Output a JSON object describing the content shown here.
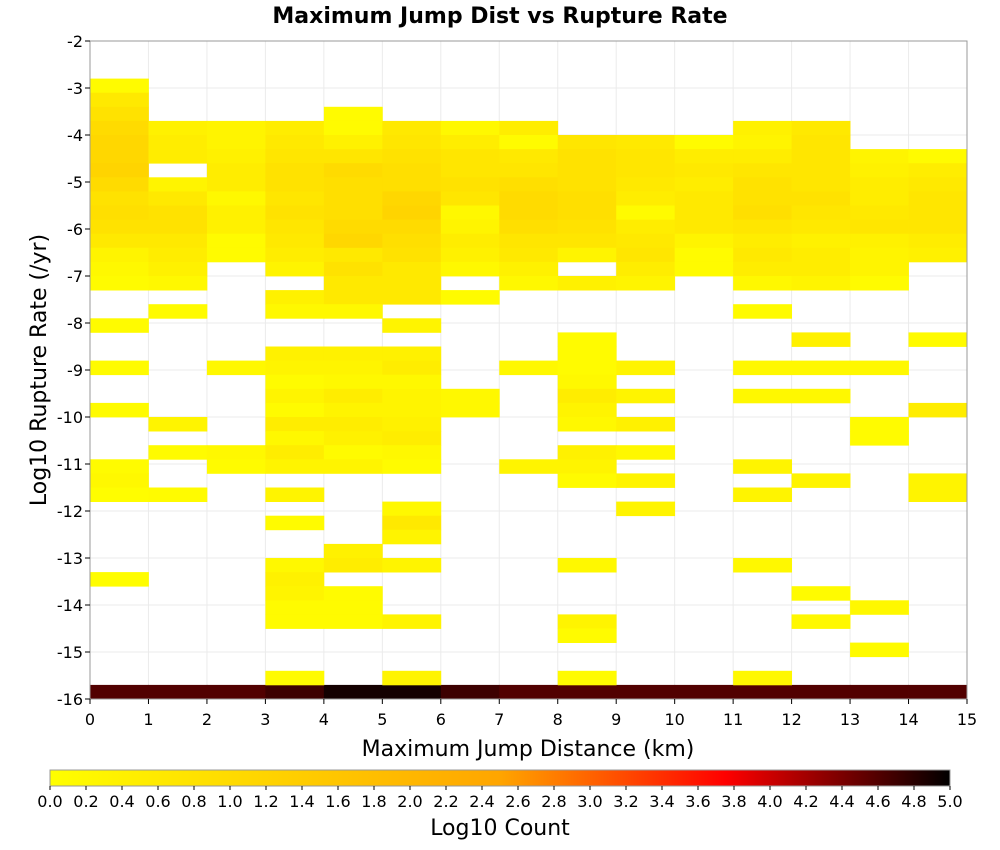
{
  "chart_data": {
    "type": "heatmap",
    "title": "Maximum Jump Dist vs Rupture Rate",
    "xlabel": "Maximum Jump Distance (km)",
    "ylabel": "Log10 Rupture Rate (/yr)",
    "xlim": [
      0,
      15
    ],
    "ylim": [
      -16,
      -2
    ],
    "x_ticks": [
      "0",
      "1",
      "2",
      "3",
      "4",
      "5",
      "6",
      "7",
      "8",
      "9",
      "10",
      "11",
      "12",
      "13",
      "14",
      "15"
    ],
    "y_ticks": [
      "-2",
      "-3",
      "-4",
      "-5",
      "-6",
      "-7",
      "-8",
      "-9",
      "-10",
      "-11",
      "-12",
      "-13",
      "-14",
      "-15",
      "-16"
    ],
    "bin_width_x": 1,
    "bin_height_y": 0.3,
    "grid": true,
    "colorbar": {
      "label": "Log10 Count",
      "range": [
        0,
        5
      ],
      "ticks": [
        "0.0",
        "0.2",
        "0.4",
        "0.6",
        "0.8",
        "1.0",
        "1.2",
        "1.4",
        "1.6",
        "1.8",
        "2.0",
        "2.2",
        "2.4",
        "2.6",
        "2.8",
        "3.0",
        "3.2",
        "3.4",
        "3.6",
        "3.8",
        "4.0",
        "4.2",
        "4.4",
        "4.6",
        "4.8",
        "5.0"
      ],
      "colors": [
        "#ffff00",
        "#ffa500",
        "#ff0000",
        "#000000"
      ]
    },
    "cells": [
      [
        0,
        -16.0,
        4.6
      ],
      [
        1,
        -16.0,
        4.6
      ],
      [
        2,
        -16.0,
        4.6
      ],
      [
        3,
        -16.0,
        4.7
      ],
      [
        4,
        -16.0,
        4.9
      ],
      [
        5,
        -16.0,
        4.9
      ],
      [
        6,
        -16.0,
        4.7
      ],
      [
        7,
        -16.0,
        4.6
      ],
      [
        8,
        -16.0,
        4.6
      ],
      [
        9,
        -16.0,
        4.6
      ],
      [
        10,
        -16.0,
        4.6
      ],
      [
        11,
        -16.0,
        4.6
      ],
      [
        12,
        -16.0,
        4.6
      ],
      [
        13,
        -16.0,
        4.6
      ],
      [
        14,
        -16.0,
        4.6
      ],
      [
        0,
        -3.1,
        0.1
      ],
      [
        0,
        -3.4,
        0.6
      ],
      [
        0,
        -3.7,
        0.8
      ],
      [
        0,
        -4.0,
        1.0
      ],
      [
        0,
        -4.3,
        1.1
      ],
      [
        0,
        -4.6,
        1.1
      ],
      [
        0,
        -4.9,
        1.2
      ],
      [
        0,
        -5.2,
        1.0
      ],
      [
        0,
        -5.5,
        0.8
      ],
      [
        0,
        -5.8,
        0.9
      ],
      [
        0,
        -6.1,
        0.8
      ],
      [
        0,
        -6.4,
        0.6
      ],
      [
        0,
        -6.7,
        0.3
      ],
      [
        0,
        -7.0,
        0.2
      ],
      [
        0,
        -7.3,
        0.1
      ],
      [
        0,
        -8.2,
        0.1
      ],
      [
        0,
        -9.1,
        0.1
      ],
      [
        0,
        -10.0,
        0.1
      ],
      [
        0,
        -11.2,
        0.1
      ],
      [
        0,
        -11.5,
        0.2
      ],
      [
        0,
        -11.8,
        0.05
      ],
      [
        0,
        -13.6,
        0.05
      ],
      [
        1,
        -4.0,
        0.4
      ],
      [
        1,
        -4.3,
        0.5
      ],
      [
        1,
        -4.6,
        0.5
      ],
      [
        1,
        -5.2,
        0.3
      ],
      [
        1,
        -5.5,
        0.6
      ],
      [
        1,
        -5.8,
        0.8
      ],
      [
        1,
        -6.1,
        0.8
      ],
      [
        1,
        -6.4,
        0.6
      ],
      [
        1,
        -6.7,
        0.5
      ],
      [
        1,
        -7.0,
        0.4
      ],
      [
        1,
        -7.3,
        0.2
      ],
      [
        1,
        -7.9,
        0.1
      ],
      [
        1,
        -10.3,
        0.3
      ],
      [
        1,
        -10.9,
        0.1
      ],
      [
        1,
        -11.8,
        0.1
      ],
      [
        2,
        -4.0,
        0.3
      ],
      [
        2,
        -4.3,
        0.3
      ],
      [
        2,
        -4.6,
        0.4
      ],
      [
        2,
        -4.9,
        0.5
      ],
      [
        2,
        -5.2,
        0.5
      ],
      [
        2,
        -5.5,
        0.2
      ],
      [
        2,
        -5.8,
        0.4
      ],
      [
        2,
        -6.1,
        0.4
      ],
      [
        2,
        -6.4,
        0.1
      ],
      [
        2,
        -6.7,
        0.1
      ],
      [
        2,
        -9.1,
        0.2
      ],
      [
        2,
        -10.9,
        0.2
      ],
      [
        2,
        -11.2,
        0.1
      ],
      [
        3,
        -4.0,
        0.5
      ],
      [
        3,
        -4.3,
        0.6
      ],
      [
        3,
        -4.6,
        0.7
      ],
      [
        3,
        -4.9,
        0.8
      ],
      [
        3,
        -5.2,
        0.8
      ],
      [
        3,
        -5.5,
        0.7
      ],
      [
        3,
        -5.8,
        0.8
      ],
      [
        3,
        -6.1,
        0.7
      ],
      [
        3,
        -6.4,
        0.6
      ],
      [
        3,
        -6.7,
        0.5
      ],
      [
        3,
        -7.0,
        0.3
      ],
      [
        3,
        -7.6,
        0.4
      ],
      [
        3,
        -7.9,
        0.2
      ],
      [
        3,
        -8.8,
        0.4
      ],
      [
        3,
        -9.1,
        0.3
      ],
      [
        3,
        -9.4,
        0.1
      ],
      [
        3,
        -9.7,
        0.3
      ],
      [
        3,
        -10.0,
        0.1
      ],
      [
        3,
        -10.3,
        0.5
      ],
      [
        3,
        -10.6,
        0.2
      ],
      [
        3,
        -10.9,
        0.5
      ],
      [
        3,
        -11.2,
        0.3
      ],
      [
        3,
        -11.8,
        0.3
      ],
      [
        3,
        -12.4,
        0.1
      ],
      [
        3,
        -13.3,
        0.2
      ],
      [
        3,
        -13.6,
        0.4
      ],
      [
        3,
        -13.9,
        0.3
      ],
      [
        3,
        -14.2,
        0.1
      ],
      [
        3,
        -14.5,
        0.1
      ],
      [
        3,
        -15.7,
        0.1
      ],
      [
        4,
        -3.7,
        0.1
      ],
      [
        4,
        -4.0,
        0.1
      ],
      [
        4,
        -4.3,
        0.4
      ],
      [
        4,
        -4.6,
        0.7
      ],
      [
        4,
        -4.9,
        1.0
      ],
      [
        4,
        -5.2,
        0.9
      ],
      [
        4,
        -5.5,
        0.9
      ],
      [
        4,
        -5.8,
        0.9
      ],
      [
        4,
        -6.1,
        1.0
      ],
      [
        4,
        -6.4,
        1.1
      ],
      [
        4,
        -6.7,
        0.6
      ],
      [
        4,
        -7.0,
        0.8
      ],
      [
        4,
        -7.3,
        0.6
      ],
      [
        4,
        -7.6,
        0.6
      ],
      [
        4,
        -7.9,
        0.2
      ],
      [
        4,
        -8.8,
        0.4
      ],
      [
        4,
        -9.1,
        0.3
      ],
      [
        4,
        -9.4,
        0.2
      ],
      [
        4,
        -9.7,
        0.5
      ],
      [
        4,
        -10.0,
        0.3
      ],
      [
        4,
        -10.3,
        0.5
      ],
      [
        4,
        -10.6,
        0.4
      ],
      [
        4,
        -10.9,
        0.1
      ],
      [
        4,
        -11.2,
        0.3
      ],
      [
        4,
        -13.0,
        0.4
      ],
      [
        4,
        -13.3,
        0.5
      ],
      [
        4,
        -13.9,
        0.1
      ],
      [
        4,
        -14.2,
        0.1
      ],
      [
        4,
        -14.5,
        0.1
      ],
      [
        5,
        -4.0,
        0.6
      ],
      [
        5,
        -4.3,
        0.7
      ],
      [
        5,
        -4.6,
        0.8
      ],
      [
        5,
        -4.9,
        0.9
      ],
      [
        5,
        -5.2,
        0.9
      ],
      [
        5,
        -5.5,
        1.1
      ],
      [
        5,
        -5.8,
        1.2
      ],
      [
        5,
        -6.1,
        1.0
      ],
      [
        5,
        -6.4,
        0.9
      ],
      [
        5,
        -6.7,
        0.8
      ],
      [
        5,
        -7.0,
        0.6
      ],
      [
        5,
        -7.3,
        0.6
      ],
      [
        5,
        -7.6,
        0.6
      ],
      [
        5,
        -8.2,
        0.3
      ],
      [
        5,
        -8.8,
        0.4
      ],
      [
        5,
        -9.1,
        0.5
      ],
      [
        5,
        -9.4,
        0.2
      ],
      [
        5,
        -9.7,
        0.3
      ],
      [
        5,
        -10.0,
        0.3
      ],
      [
        5,
        -10.3,
        0.4
      ],
      [
        5,
        -10.6,
        0.5
      ],
      [
        5,
        -10.9,
        0.2
      ],
      [
        5,
        -11.2,
        0.1
      ],
      [
        5,
        -12.1,
        0.2
      ],
      [
        5,
        -12.4,
        0.6
      ],
      [
        5,
        -12.7,
        0.3
      ],
      [
        5,
        -13.3,
        0.3
      ],
      [
        5,
        -14.5,
        0.3
      ],
      [
        5,
        -15.7,
        0.3
      ],
      [
        6,
        -4.0,
        0.2
      ],
      [
        6,
        -4.3,
        0.5
      ],
      [
        6,
        -4.6,
        0.7
      ],
      [
        6,
        -4.9,
        0.7
      ],
      [
        6,
        -5.2,
        0.8
      ],
      [
        6,
        -5.5,
        0.7
      ],
      [
        6,
        -5.8,
        0.2
      ],
      [
        6,
        -6.1,
        0.3
      ],
      [
        6,
        -6.4,
        0.5
      ],
      [
        6,
        -6.7,
        0.4
      ],
      [
        6,
        -7.0,
        0.2
      ],
      [
        6,
        -7.6,
        0.1
      ],
      [
        6,
        -9.7,
        0.2
      ],
      [
        6,
        -10.0,
        0.2
      ],
      [
        7,
        -4.0,
        0.5
      ],
      [
        7,
        -4.3,
        0.1
      ],
      [
        7,
        -4.6,
        0.6
      ],
      [
        7,
        -4.9,
        0.7
      ],
      [
        7,
        -5.2,
        0.9
      ],
      [
        7,
        -5.5,
        1.0
      ],
      [
        7,
        -5.8,
        1.0
      ],
      [
        7,
        -6.1,
        0.9
      ],
      [
        7,
        -6.4,
        0.7
      ],
      [
        7,
        -6.7,
        0.6
      ],
      [
        7,
        -7.0,
        0.4
      ],
      [
        7,
        -7.3,
        0.2
      ],
      [
        7,
        -9.1,
        0.2
      ],
      [
        7,
        -11.2,
        0.3
      ],
      [
        8,
        -4.3,
        0.7
      ],
      [
        8,
        -4.6,
        0.8
      ],
      [
        8,
        -4.9,
        0.8
      ],
      [
        8,
        -5.2,
        0.8
      ],
      [
        8,
        -5.5,
        0.9
      ],
      [
        8,
        -5.8,
        0.9
      ],
      [
        8,
        -6.1,
        0.8
      ],
      [
        8,
        -6.4,
        0.7
      ],
      [
        8,
        -6.7,
        0.3
      ],
      [
        8,
        -7.3,
        0.4
      ],
      [
        8,
        -8.5,
        0.1
      ],
      [
        8,
        -8.8,
        0.1
      ],
      [
        8,
        -9.1,
        0.1
      ],
      [
        8,
        -9.4,
        0.2
      ],
      [
        8,
        -9.7,
        0.5
      ],
      [
        8,
        -10.0,
        0.3
      ],
      [
        8,
        -10.3,
        0.2
      ],
      [
        8,
        -10.9,
        0.4
      ],
      [
        8,
        -11.2,
        0.3
      ],
      [
        8,
        -11.5,
        0.1
      ],
      [
        8,
        -13.3,
        0.2
      ],
      [
        8,
        -14.5,
        0.3
      ],
      [
        8,
        -14.8,
        0.1
      ],
      [
        8,
        -15.7,
        0.1
      ],
      [
        9,
        -4.3,
        0.6
      ],
      [
        9,
        -4.6,
        0.7
      ],
      [
        9,
        -4.9,
        0.7
      ],
      [
        9,
        -5.2,
        0.6
      ],
      [
        9,
        -5.5,
        0.5
      ],
      [
        9,
        -5.8,
        0.1
      ],
      [
        9,
        -6.1,
        0.5
      ],
      [
        9,
        -6.4,
        0.6
      ],
      [
        9,
        -6.7,
        0.7
      ],
      [
        9,
        -7.0,
        0.5
      ],
      [
        9,
        -7.3,
        0.3
      ],
      [
        9,
        -9.1,
        0.3
      ],
      [
        9,
        -9.7,
        0.3
      ],
      [
        9,
        -10.3,
        0.4
      ],
      [
        9,
        -10.9,
        0.2
      ],
      [
        9,
        -11.5,
        0.3
      ],
      [
        9,
        -12.1,
        0.3
      ],
      [
        10,
        -4.3,
        0.1
      ],
      [
        10,
        -4.6,
        0.5
      ],
      [
        10,
        -4.9,
        0.6
      ],
      [
        10,
        -5.2,
        0.5
      ],
      [
        10,
        -5.5,
        0.6
      ],
      [
        10,
        -5.8,
        0.6
      ],
      [
        10,
        -6.1,
        0.6
      ],
      [
        10,
        -6.4,
        0.3
      ],
      [
        10,
        -6.7,
        0.1
      ],
      [
        10,
        -7.0,
        0.1
      ],
      [
        11,
        -4.0,
        0.4
      ],
      [
        11,
        -4.3,
        0.3
      ],
      [
        11,
        -4.6,
        0.5
      ],
      [
        11,
        -4.9,
        0.7
      ],
      [
        11,
        -5.2,
        0.8
      ],
      [
        11,
        -5.5,
        0.8
      ],
      [
        11,
        -5.8,
        0.9
      ],
      [
        11,
        -6.1,
        0.7
      ],
      [
        11,
        -6.4,
        0.5
      ],
      [
        11,
        -6.7,
        0.6
      ],
      [
        11,
        -7.0,
        0.5
      ],
      [
        11,
        -7.3,
        0.2
      ],
      [
        11,
        -7.9,
        0.1
      ],
      [
        11,
        -9.1,
        0.2
      ],
      [
        11,
        -9.7,
        0.2
      ],
      [
        11,
        -11.2,
        0.3
      ],
      [
        11,
        -11.8,
        0.3
      ],
      [
        11,
        -13.3,
        0.2
      ],
      [
        11,
        -15.7,
        0.2
      ],
      [
        12,
        -4.0,
        0.6
      ],
      [
        12,
        -4.3,
        0.7
      ],
      [
        12,
        -4.6,
        0.7
      ],
      [
        12,
        -4.9,
        0.7
      ],
      [
        12,
        -5.2,
        0.7
      ],
      [
        12,
        -5.5,
        0.8
      ],
      [
        12,
        -5.8,
        0.7
      ],
      [
        12,
        -6.1,
        0.6
      ],
      [
        12,
        -6.4,
        0.4
      ],
      [
        12,
        -6.7,
        0.5
      ],
      [
        12,
        -7.0,
        0.5
      ],
      [
        12,
        -7.3,
        0.3
      ],
      [
        12,
        -8.5,
        0.4
      ],
      [
        12,
        -9.1,
        0.2
      ],
      [
        12,
        -9.7,
        0.2
      ],
      [
        12,
        -11.5,
        0.3
      ],
      [
        12,
        -13.9,
        0.1
      ],
      [
        12,
        -14.5,
        0.2
      ],
      [
        13,
        -4.6,
        0.3
      ],
      [
        13,
        -4.9,
        0.4
      ],
      [
        13,
        -5.2,
        0.5
      ],
      [
        13,
        -5.5,
        0.5
      ],
      [
        13,
        -5.8,
        0.6
      ],
      [
        13,
        -6.1,
        0.7
      ],
      [
        13,
        -6.4,
        0.4
      ],
      [
        13,
        -6.7,
        0.3
      ],
      [
        13,
        -7.0,
        0.3
      ],
      [
        13,
        -7.3,
        0.1
      ],
      [
        13,
        -9.1,
        0.2
      ],
      [
        13,
        -10.3,
        0.1
      ],
      [
        13,
        -10.6,
        0.1
      ],
      [
        13,
        -14.2,
        0.2
      ],
      [
        13,
        -15.1,
        0.1
      ],
      [
        14,
        -4.6,
        0.1
      ],
      [
        14,
        -4.9,
        0.5
      ],
      [
        14,
        -5.2,
        0.6
      ],
      [
        14,
        -5.5,
        0.7
      ],
      [
        14,
        -5.8,
        0.7
      ],
      [
        14,
        -6.1,
        0.7
      ],
      [
        14,
        -6.4,
        0.5
      ],
      [
        14,
        -6.7,
        0.4
      ],
      [
        14,
        -8.5,
        0.1
      ],
      [
        14,
        -10.0,
        0.5
      ],
      [
        14,
        -11.5,
        0.3
      ],
      [
        14,
        -11.8,
        0.3
      ]
    ]
  }
}
